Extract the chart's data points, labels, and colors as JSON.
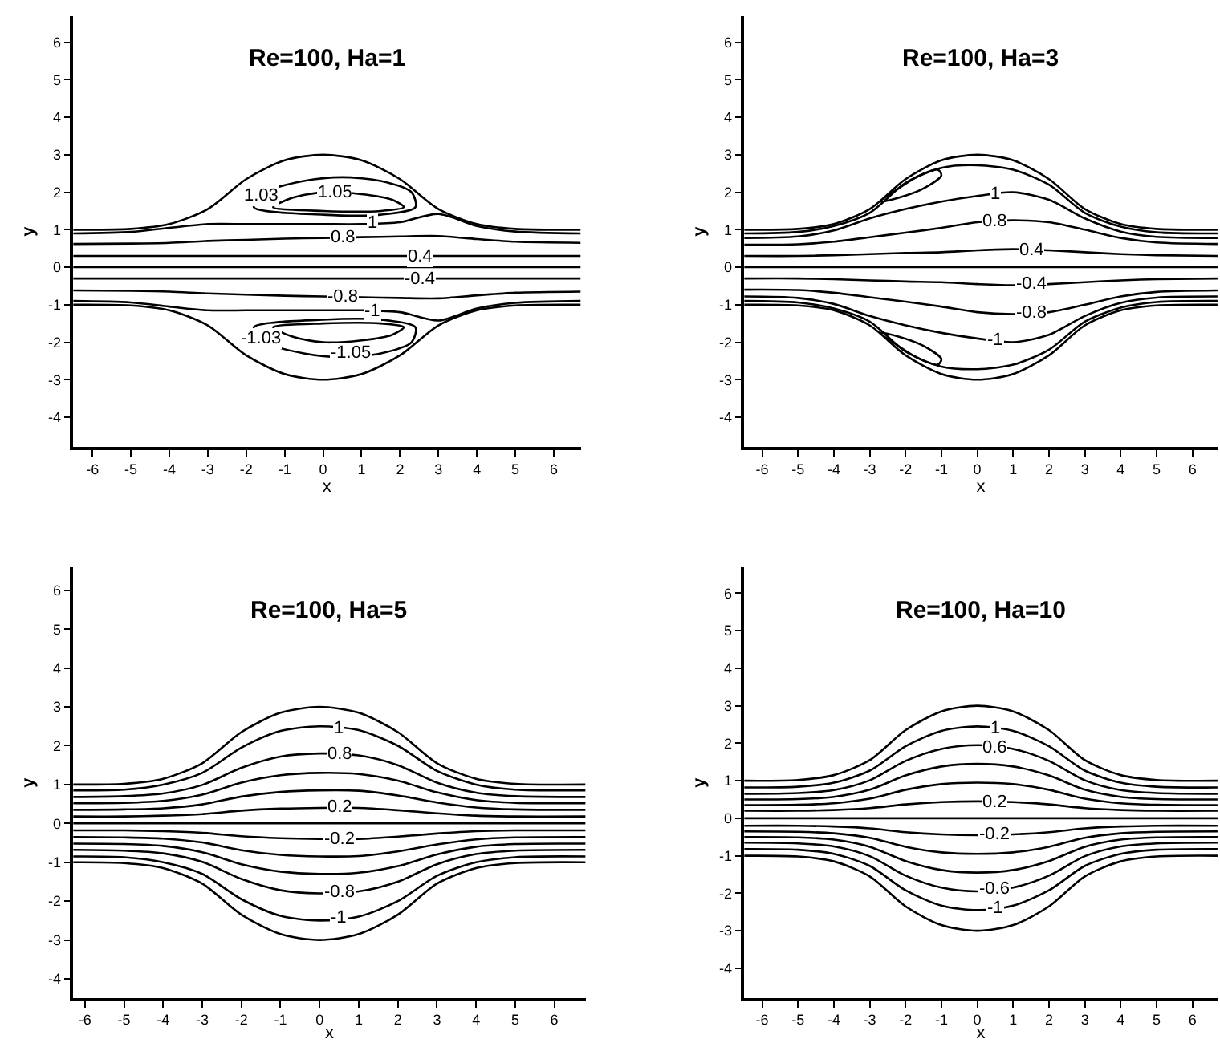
{
  "chart_data": [
    {
      "type": "line",
      "title": "Re=100, Ha=1",
      "xlabel": "x",
      "ylabel": "y",
      "line_style": "solid",
      "x": [
        -6.5,
        -5,
        -4,
        -3,
        -2,
        -1,
        0,
        1,
        2,
        3,
        4,
        5,
        6.7
      ],
      "xlim": [
        -6.5,
        6.7
      ],
      "xticks": [
        -6,
        -5,
        -4,
        -3,
        -2,
        -1,
        0,
        1,
        2,
        3,
        4,
        5,
        6
      ],
      "ylim": [
        -4.8,
        6.7
      ],
      "yticks": [
        -4,
        -3,
        -2,
        -1,
        0,
        1,
        2,
        3,
        4,
        5,
        6
      ],
      "series": [
        {
          "color": "#000000",
          "values": [
            1,
            1.02,
            1.15,
            1.55,
            2.35,
            2.85,
            3,
            2.85,
            2.35,
            1.55,
            1.15,
            1.02,
            1
          ]
        },
        {
          "color": "#000000",
          "values": [
            0.9,
            0.94,
            1.05,
            1.15,
            1.15,
            1.15,
            1.15,
            1.15,
            1.2,
            1.42,
            1.1,
            0.95,
            0.9
          ]
        },
        {
          "color": "#000000",
          "values": [
            0.62,
            0.63,
            0.65,
            0.7,
            0.73,
            0.76,
            0.78,
            0.8,
            0.82,
            0.83,
            0.75,
            0.68,
            0.65
          ]
        },
        {
          "color": "#000000",
          "values": [
            0.3,
            0.3,
            0.3,
            0.3,
            0.3,
            0.3,
            0.3,
            0.3,
            0.3,
            0.3,
            0.3,
            0.3,
            0.3
          ]
        },
        {
          "color": "#000000",
          "values": [
            0,
            0,
            0,
            0,
            0,
            0,
            0,
            0,
            0,
            0,
            0,
            0,
            0
          ]
        },
        {
          "color": "#000000",
          "values": [
            -0.3,
            -0.3,
            -0.3,
            -0.3,
            -0.3,
            -0.3,
            -0.3,
            -0.3,
            -0.3,
            -0.3,
            -0.3,
            -0.3,
            -0.3
          ]
        },
        {
          "color": "#000000",
          "values": [
            -0.62,
            -0.63,
            -0.65,
            -0.7,
            -0.73,
            -0.76,
            -0.78,
            -0.8,
            -0.82,
            -0.83,
            -0.75,
            -0.68,
            -0.65
          ]
        },
        {
          "color": "#000000",
          "values": [
            -0.9,
            -0.94,
            -1.05,
            -1.15,
            -1.15,
            -1.15,
            -1.15,
            -1.15,
            -1.2,
            -1.42,
            -1.1,
            -0.95,
            -0.9
          ]
        },
        {
          "color": "#000000",
          "values": [
            -1,
            -1.02,
            -1.15,
            -1.55,
            -2.35,
            -2.85,
            -3,
            -2.85,
            -2.35,
            -1.55,
            -1.15,
            -1.02,
            -1
          ]
        }
      ],
      "annotations": [
        {
          "text": "1.05",
          "x": 0.3,
          "y": 1.98
        },
        {
          "text": "1.03",
          "x": -1.6,
          "y": 1.9
        },
        {
          "text": "1",
          "x": 1.3,
          "y": 1.16
        },
        {
          "text": "0.8",
          "x": 0.5,
          "y": 0.79
        },
        {
          "text": "0.4",
          "x": 2.5,
          "y": 0.3
        },
        {
          "text": "-0.4",
          "x": 2.5,
          "y": -0.3
        },
        {
          "text": "-0.8",
          "x": 0.5,
          "y": -0.79
        },
        {
          "text": "-1",
          "x": 1.3,
          "y": -1.16
        },
        {
          "text": "-1.03",
          "x": -1.6,
          "y": -1.9
        },
        {
          "text": "-1.05",
          "x": 0.7,
          "y": -2.3
        }
      ]
    },
    {
      "type": "line",
      "title": "Re=100, Ha=3",
      "xlabel": "x",
      "ylabel": "y",
      "line_style": "solid",
      "x": [
        -6.5,
        -5,
        -4,
        -3,
        -2,
        -1,
        0,
        1,
        2,
        3,
        4,
        5,
        6.7
      ],
      "xlim": [
        -6.5,
        6.7
      ],
      "xticks": [
        -6,
        -5,
        -4,
        -3,
        -2,
        -1,
        0,
        1,
        2,
        3,
        4,
        5,
        6
      ],
      "ylim": [
        -4.8,
        6.7
      ],
      "yticks": [
        -4,
        -3,
        -2,
        -1,
        0,
        1,
        2,
        3,
        4,
        5,
        6
      ],
      "series": [
        {
          "color": "#000000",
          "values": [
            1,
            1.02,
            1.15,
            1.55,
            2.35,
            2.85,
            3,
            2.85,
            2.35,
            1.55,
            1.15,
            1.02,
            1
          ]
        },
        {
          "color": "#000000",
          "values": [
            0.9,
            0.94,
            1.1,
            1.45,
            2.25,
            2.65,
            2.72,
            2.6,
            2.2,
            1.45,
            1.08,
            0.93,
            0.9
          ]
        },
        {
          "color": "#000000",
          "values": [
            0.78,
            0.82,
            0.98,
            1.3,
            1.55,
            1.75,
            1.9,
            2.0,
            1.8,
            1.3,
            0.95,
            0.81,
            0.78
          ]
        },
        {
          "color": "#000000",
          "values": [
            0.6,
            0.61,
            0.68,
            0.8,
            0.92,
            1.05,
            1.2,
            1.25,
            1.2,
            1.0,
            0.78,
            0.66,
            0.62
          ]
        },
        {
          "color": "#000000",
          "values": [
            0.3,
            0.3,
            0.32,
            0.35,
            0.38,
            0.4,
            0.45,
            0.48,
            0.45,
            0.4,
            0.35,
            0.32,
            0.3
          ]
        },
        {
          "color": "#000000",
          "values": [
            0,
            0,
            0,
            0,
            0,
            0,
            0,
            0,
            0,
            0,
            0,
            0,
            0
          ]
        },
        {
          "color": "#000000",
          "values": [
            -0.3,
            -0.3,
            -0.32,
            -0.35,
            -0.38,
            -0.4,
            -0.45,
            -0.48,
            -0.45,
            -0.4,
            -0.35,
            -0.32,
            -0.3
          ]
        },
        {
          "color": "#000000",
          "values": [
            -0.6,
            -0.61,
            -0.68,
            -0.8,
            -0.92,
            -1.05,
            -1.2,
            -1.25,
            -1.2,
            -1.0,
            -0.78,
            -0.66,
            -0.62
          ]
        },
        {
          "color": "#000000",
          "values": [
            -0.78,
            -0.82,
            -0.98,
            -1.3,
            -1.55,
            -1.75,
            -1.9,
            -2.0,
            -1.8,
            -1.3,
            -0.95,
            -0.81,
            -0.78
          ]
        },
        {
          "color": "#000000",
          "values": [
            -0.9,
            -0.94,
            -1.1,
            -1.45,
            -2.25,
            -2.65,
            -2.72,
            -2.6,
            -2.2,
            -1.45,
            -1.08,
            -0.93,
            -0.9
          ]
        },
        {
          "color": "#000000",
          "values": [
            -1,
            -1.02,
            -1.15,
            -1.55,
            -2.35,
            -2.85,
            -3,
            -2.85,
            -2.35,
            -1.55,
            -1.15,
            -1.02,
            -1
          ]
        }
      ],
      "annotations": [
        {
          "text": "1",
          "x": 0.5,
          "y": 1.95
        },
        {
          "text": "0.8",
          "x": 0.5,
          "y": 1.22
        },
        {
          "text": "0.4",
          "x": 1.5,
          "y": 0.46
        },
        {
          "text": "-0.4",
          "x": 1.5,
          "y": -0.46
        },
        {
          "text": "-0.8",
          "x": 1.5,
          "y": -1.23
        },
        {
          "text": "-1",
          "x": 0.5,
          "y": -1.95
        }
      ]
    },
    {
      "type": "line",
      "title": "Re=100, Ha=5",
      "xlabel": "x",
      "ylabel": "y",
      "line_style": "solid",
      "x": [
        -6.3,
        -5,
        -4,
        -3,
        -2,
        -1,
        0,
        1,
        2,
        3,
        4,
        5,
        6.8
      ],
      "xlim": [
        -6.3,
        6.8
      ],
      "xticks": [
        -6,
        -5,
        -4,
        -3,
        -2,
        -1,
        0,
        1,
        2,
        3,
        4,
        5,
        6
      ],
      "ylim": [
        -4.5,
        6.6
      ],
      "yticks": [
        -4,
        -3,
        -2,
        -1,
        0,
        1,
        2,
        3,
        4,
        5,
        6
      ],
      "series": [
        {
          "color": "#000000",
          "values": [
            1,
            1.02,
            1.15,
            1.55,
            2.35,
            2.85,
            3,
            2.85,
            2.35,
            1.55,
            1.15,
            1.02,
            1
          ]
        },
        {
          "color": "#000000",
          "values": [
            0.85,
            0.87,
            1.0,
            1.3,
            1.95,
            2.38,
            2.5,
            2.4,
            2.0,
            1.35,
            1.0,
            0.87,
            0.85
          ]
        },
        {
          "color": "#000000",
          "values": [
            0.68,
            0.7,
            0.77,
            0.99,
            1.43,
            1.72,
            1.8,
            1.75,
            1.5,
            1.05,
            0.79,
            0.7,
            0.68
          ]
        },
        {
          "color": "#000000",
          "values": [
            0.52,
            0.53,
            0.58,
            0.74,
            1.05,
            1.24,
            1.3,
            1.27,
            1.1,
            0.8,
            0.6,
            0.53,
            0.52
          ]
        },
        {
          "color": "#000000",
          "values": [
            0.35,
            0.36,
            0.39,
            0.49,
            0.69,
            0.81,
            0.85,
            0.84,
            0.72,
            0.54,
            0.41,
            0.36,
            0.35
          ]
        },
        {
          "color": "#000000",
          "values": [
            0.18,
            0.18,
            0.2,
            0.24,
            0.33,
            0.38,
            0.4,
            0.4,
            0.34,
            0.26,
            0.2,
            0.18,
            0.18
          ]
        },
        {
          "color": "#000000",
          "values": [
            0,
            0,
            0,
            0,
            0,
            0,
            0,
            0,
            0,
            0,
            0,
            0,
            0
          ]
        },
        {
          "color": "#000000",
          "values": [
            -0.18,
            -0.18,
            -0.2,
            -0.24,
            -0.33,
            -0.38,
            -0.4,
            -0.4,
            -0.34,
            -0.26,
            -0.2,
            -0.18,
            -0.18
          ]
        },
        {
          "color": "#000000",
          "values": [
            -0.35,
            -0.36,
            -0.39,
            -0.49,
            -0.69,
            -0.81,
            -0.85,
            -0.84,
            -0.72,
            -0.54,
            -0.41,
            -0.36,
            -0.35
          ]
        },
        {
          "color": "#000000",
          "values": [
            -0.52,
            -0.53,
            -0.58,
            -0.74,
            -1.05,
            -1.24,
            -1.3,
            -1.27,
            -1.1,
            -0.8,
            -0.6,
            -0.53,
            -0.52
          ]
        },
        {
          "color": "#000000",
          "values": [
            -0.68,
            -0.7,
            -0.77,
            -0.99,
            -1.43,
            -1.72,
            -1.8,
            -1.75,
            -1.5,
            -1.05,
            -0.79,
            -0.7,
            -0.68
          ]
        },
        {
          "color": "#000000",
          "values": [
            -0.85,
            -0.87,
            -1.0,
            -1.3,
            -1.95,
            -2.38,
            -2.5,
            -2.4,
            -2.0,
            -1.35,
            -1.0,
            -0.87,
            -0.85
          ]
        },
        {
          "color": "#000000",
          "values": [
            -1,
            -1.02,
            -1.15,
            -1.55,
            -2.35,
            -2.85,
            -3,
            -2.85,
            -2.35,
            -1.55,
            -1.15,
            -1.02,
            -1
          ]
        }
      ],
      "annotations": [
        {
          "text": "1",
          "x": 0.5,
          "y": 2.45
        },
        {
          "text": "0.8",
          "x": 0.5,
          "y": 1.78
        },
        {
          "text": "0.2",
          "x": 0.5,
          "y": 0.4
        },
        {
          "text": "-0.2",
          "x": 0.5,
          "y": -0.4
        },
        {
          "text": "-0.8",
          "x": 0.5,
          "y": -1.78
        },
        {
          "text": "-1",
          "x": 0.5,
          "y": -2.45
        }
      ]
    },
    {
      "type": "line",
      "title": "Re=100, Ha=10",
      "xlabel": "x",
      "ylabel": "y",
      "line_style": "solid",
      "x": [
        -6.5,
        -5,
        -4,
        -3,
        -2,
        -1,
        0,
        1,
        2,
        3,
        4,
        5,
        6.7
      ],
      "xlim": [
        -6.5,
        6.7
      ],
      "xticks": [
        -6,
        -5,
        -4,
        -3,
        -2,
        -1,
        0,
        1,
        2,
        3,
        4,
        5,
        6
      ],
      "ylim": [
        -4.8,
        6.7
      ],
      "yticks": [
        -4,
        -3,
        -2,
        -1,
        0,
        1,
        2,
        3,
        4,
        5,
        6
      ],
      "series": [
        {
          "color": "#000000",
          "values": [
            1,
            1.02,
            1.15,
            1.55,
            2.35,
            2.85,
            3,
            2.85,
            2.35,
            1.55,
            1.15,
            1.02,
            1
          ]
        },
        {
          "color": "#000000",
          "values": [
            0.82,
            0.84,
            0.95,
            1.27,
            1.92,
            2.33,
            2.45,
            2.33,
            1.92,
            1.27,
            0.95,
            0.84,
            0.82
          ]
        },
        {
          "color": "#000000",
          "values": [
            0.65,
            0.67,
            0.75,
            1.01,
            1.53,
            1.85,
            1.95,
            1.85,
            1.53,
            1.01,
            0.75,
            0.67,
            0.65
          ]
        },
        {
          "color": "#000000",
          "values": [
            0.5,
            0.51,
            0.57,
            0.76,
            1.14,
            1.38,
            1.45,
            1.38,
            1.14,
            0.76,
            0.57,
            0.51,
            0.5
          ]
        },
        {
          "color": "#000000",
          "values": [
            0.35,
            0.36,
            0.4,
            0.52,
            0.76,
            0.91,
            0.95,
            0.91,
            0.76,
            0.52,
            0.4,
            0.36,
            0.35
          ]
        },
        {
          "color": "#000000",
          "values": [
            0.2,
            0.2,
            0.22,
            0.27,
            0.37,
            0.43,
            0.45,
            0.43,
            0.37,
            0.27,
            0.22,
            0.2,
            0.2
          ]
        },
        {
          "color": "#000000",
          "values": [
            0,
            0,
            0,
            0,
            0,
            0,
            0,
            0,
            0,
            0,
            0,
            0,
            0
          ]
        },
        {
          "color": "#000000",
          "values": [
            -0.2,
            -0.2,
            -0.22,
            -0.27,
            -0.37,
            -0.43,
            -0.45,
            -0.43,
            -0.37,
            -0.27,
            -0.22,
            -0.2,
            -0.2
          ]
        },
        {
          "color": "#000000",
          "values": [
            -0.35,
            -0.36,
            -0.4,
            -0.52,
            -0.76,
            -0.91,
            -0.95,
            -0.91,
            -0.76,
            -0.52,
            -0.4,
            -0.36,
            -0.35
          ]
        },
        {
          "color": "#000000",
          "values": [
            -0.5,
            -0.51,
            -0.57,
            -0.76,
            -1.14,
            -1.38,
            -1.45,
            -1.38,
            -1.14,
            -0.76,
            -0.57,
            -0.51,
            -0.5
          ]
        },
        {
          "color": "#000000",
          "values": [
            -0.65,
            -0.67,
            -0.75,
            -1.01,
            -1.53,
            -1.85,
            -1.95,
            -1.85,
            -1.53,
            -1.01,
            -0.75,
            -0.67,
            -0.65
          ]
        },
        {
          "color": "#000000",
          "values": [
            -0.82,
            -0.84,
            -0.95,
            -1.27,
            -1.92,
            -2.33,
            -2.45,
            -2.33,
            -1.92,
            -1.27,
            -0.95,
            -0.84,
            -0.82
          ]
        },
        {
          "color": "#000000",
          "values": [
            -1,
            -1.02,
            -1.15,
            -1.55,
            -2.35,
            -2.85,
            -3,
            -2.85,
            -2.35,
            -1.55,
            -1.15,
            -1.02,
            -1
          ]
        }
      ],
      "annotations": [
        {
          "text": "1",
          "x": 0.5,
          "y": 2.39
        },
        {
          "text": "0.6",
          "x": 0.5,
          "y": 1.9
        },
        {
          "text": "0.2",
          "x": 0.5,
          "y": 0.44
        },
        {
          "text": "-0.2",
          "x": 0.5,
          "y": -0.44
        },
        {
          "text": "-0.6",
          "x": 0.5,
          "y": -1.9
        },
        {
          "text": "-1",
          "x": 0.5,
          "y": -2.39
        }
      ]
    }
  ]
}
